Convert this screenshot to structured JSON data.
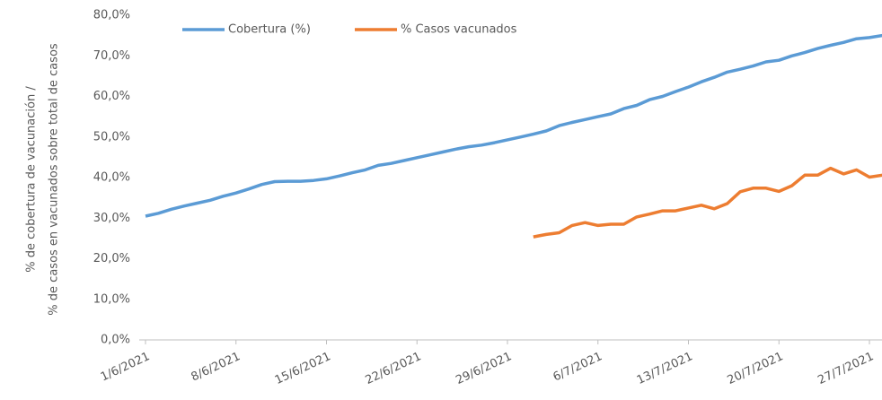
{
  "chart_data": {
    "type": "line",
    "ylabel": [
      "% de cobertura de vacunación /",
      "% de casos en vacunados sobre total de casos"
    ],
    "categories": [
      "1/6/2021",
      null,
      null,
      null,
      null,
      null,
      null,
      "8/6/2021",
      null,
      null,
      null,
      null,
      null,
      null,
      "15/6/2021",
      null,
      null,
      null,
      null,
      null,
      null,
      "22/6/2021",
      null,
      null,
      null,
      null,
      null,
      null,
      "29/6/2021",
      null,
      null,
      null,
      null,
      null,
      null,
      "6/7/2021",
      null,
      null,
      null,
      null,
      null,
      null,
      "13/7/2021",
      null,
      null,
      null,
      null,
      null,
      null,
      "20/7/2021",
      null,
      null,
      null,
      null,
      null,
      null,
      "27/7/2021",
      null
    ],
    "series": [
      {
        "name": "Cobertura (%)",
        "color": "#5b9bd5",
        "values": [
          30.5,
          31.2,
          32.2,
          33.0,
          33.7,
          34.4,
          35.4,
          36.2,
          37.2,
          38.3,
          39.0,
          39.1,
          39.1,
          39.3,
          39.7,
          40.4,
          41.2,
          41.9,
          43.0,
          43.5,
          44.2,
          44.9,
          45.6,
          46.3,
          47.0,
          47.6,
          48.0,
          48.6,
          49.3,
          50.0,
          50.7,
          51.5,
          52.8,
          53.6,
          54.3,
          55.0,
          55.7,
          57.0,
          57.8,
          59.2,
          60.0,
          61.2,
          62.3,
          63.6,
          64.7,
          66.0,
          66.7,
          67.5,
          68.5,
          68.9,
          70.0,
          70.8,
          71.8,
          72.6,
          73.3,
          74.2,
          74.5,
          75.0
        ]
      },
      {
        "name": "% Casos vacunados",
        "color": "#ed7d31",
        "values": [
          null,
          null,
          null,
          null,
          null,
          null,
          null,
          null,
          null,
          null,
          null,
          null,
          null,
          null,
          null,
          null,
          null,
          null,
          null,
          null,
          null,
          null,
          null,
          null,
          null,
          null,
          null,
          null,
          null,
          null,
          25.4,
          26.0,
          26.4,
          28.2,
          28.9,
          28.2,
          28.5,
          28.5,
          30.3,
          31.0,
          31.8,
          31.8,
          32.5,
          33.2,
          32.3,
          33.6,
          36.5,
          37.4,
          37.4,
          36.6,
          38.0,
          40.6,
          40.6,
          42.3,
          40.9,
          41.9,
          40.1,
          40.6
        ]
      }
    ],
    "ylim": [
      0,
      80
    ],
    "yticks": [
      {
        "value": 0,
        "label": "0,0%"
      },
      {
        "value": 10,
        "label": "10,0%"
      },
      {
        "value": 20,
        "label": "20,0%"
      },
      {
        "value": 30,
        "label": "30,0%"
      },
      {
        "value": 40,
        "label": "40,0%"
      },
      {
        "value": 50,
        "label": "50,0%"
      },
      {
        "value": 60,
        "label": "60,0%"
      },
      {
        "value": 70,
        "label": "70,0%"
      },
      {
        "value": 80,
        "label": "80,0%"
      }
    ],
    "grid": false
  }
}
